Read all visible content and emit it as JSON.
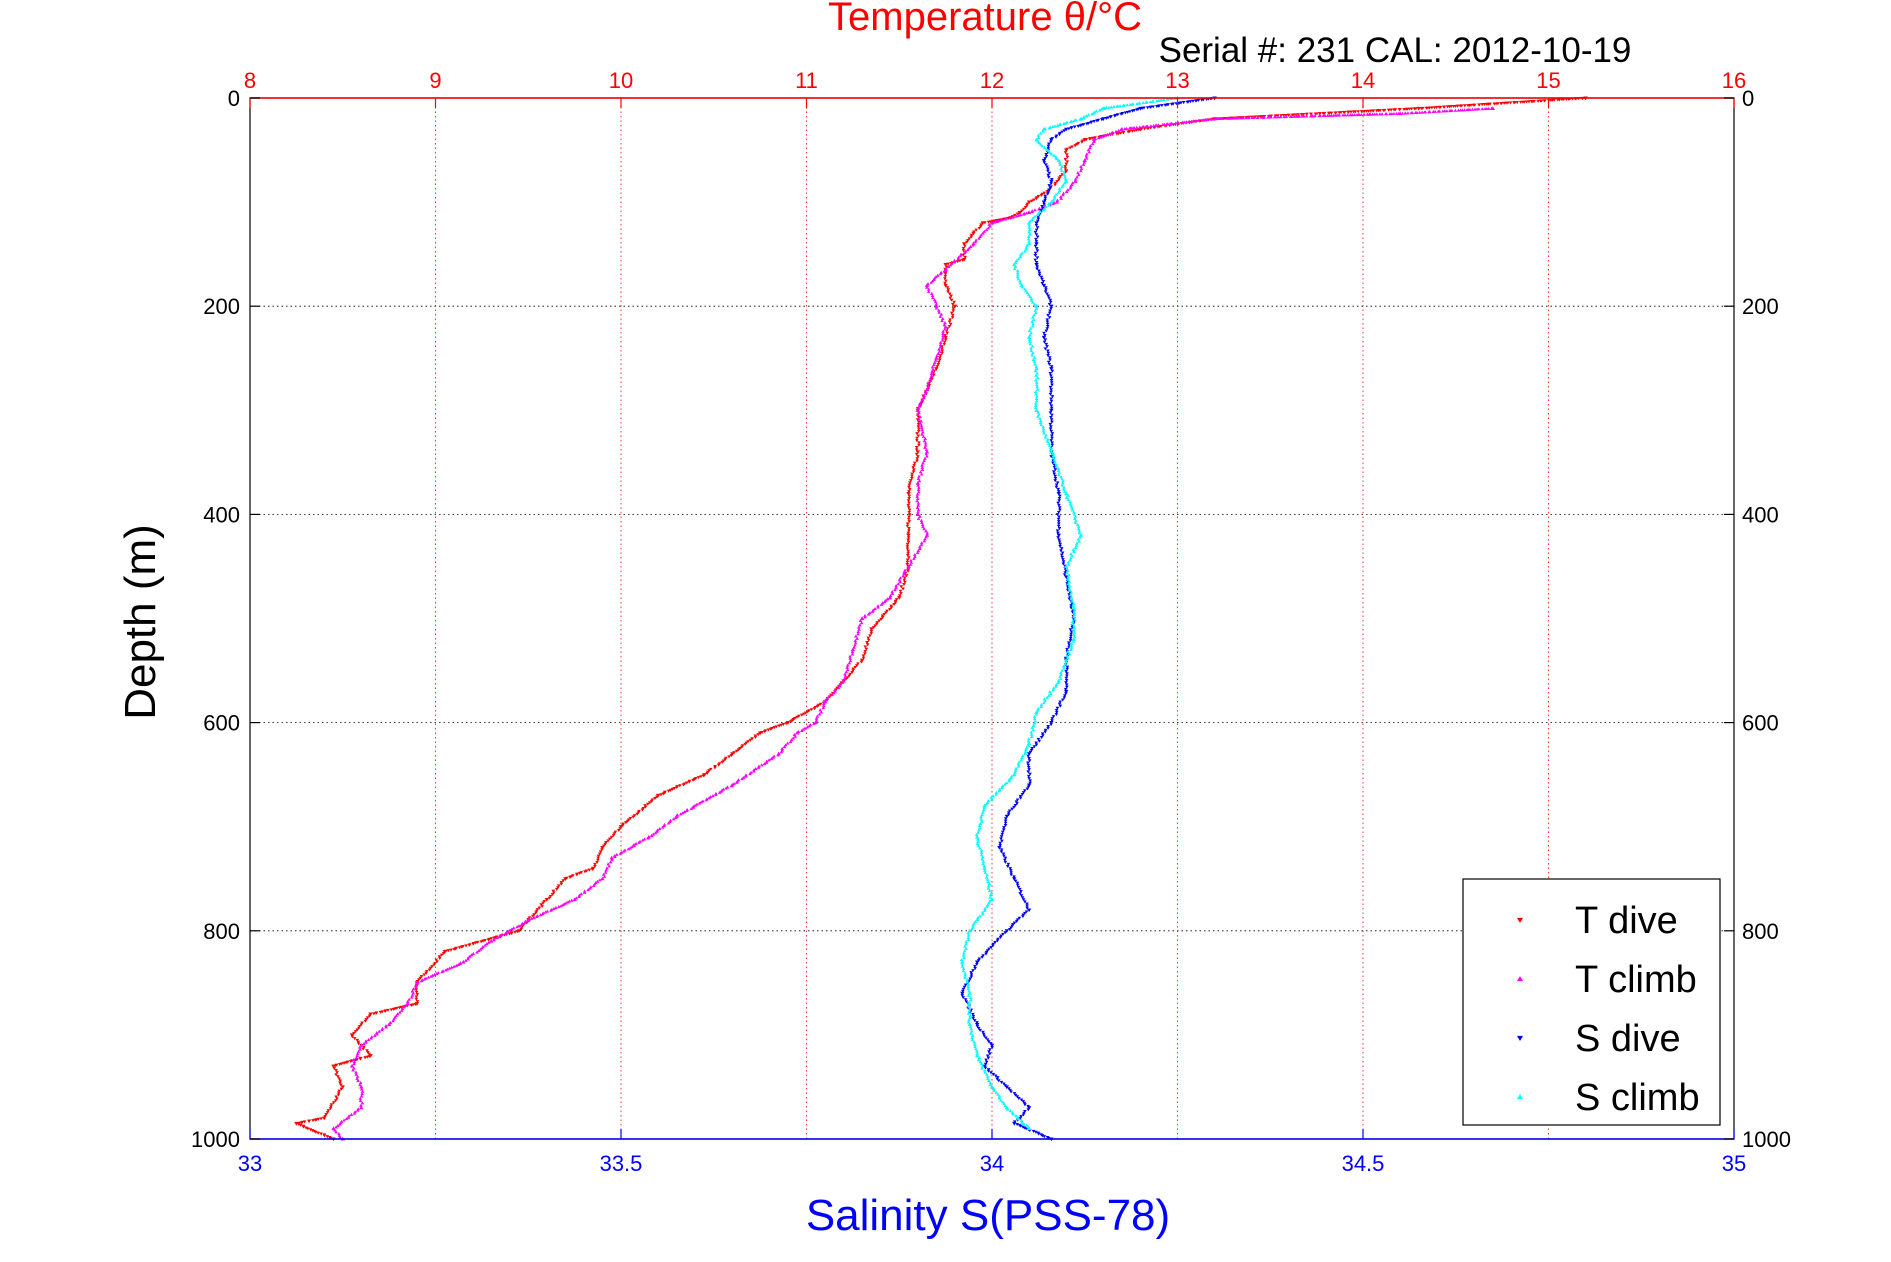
{
  "chart_data": {
    "type": "scatter",
    "title": "Temperature θ/°C",
    "subtitle": "Serial #: 231   CAL: 2012-10-19",
    "xlabel": "Salinity S(PSS-78)",
    "ylabel": "Depth (m)",
    "x_top": {
      "label": "Temperature θ/°C",
      "range": [
        8,
        16
      ],
      "ticks": [
        "8",
        "9",
        "10",
        "11",
        "12",
        "13",
        "14",
        "15",
        "16"
      ],
      "color": "#ff0000"
    },
    "x_bottom": {
      "label": "Salinity S(PSS-78)",
      "range": [
        33,
        35
      ],
      "ticks": [
        "33",
        "33.5",
        "34",
        "34.5",
        "35"
      ],
      "color": "#0000ff"
    },
    "y": {
      "range": [
        0,
        1000
      ],
      "reversed": true,
      "ticks": [
        "0",
        "200",
        "400",
        "600",
        "800",
        "1000"
      ]
    },
    "grid": true,
    "legend_position": "bottom-right",
    "series": [
      {
        "name": "T dive",
        "axis": "temperature",
        "color": "#ff0000",
        "marker": "down-triangle",
        "points": [
          [
            15.2,
            0
          ],
          [
            14.3,
            10
          ],
          [
            13.2,
            20
          ],
          [
            12.8,
            30
          ],
          [
            12.5,
            40
          ],
          [
            12.4,
            50
          ],
          [
            12.4,
            70
          ],
          [
            12.3,
            90
          ],
          [
            12.2,
            100
          ],
          [
            12.15,
            110
          ],
          [
            12.1,
            115
          ],
          [
            11.95,
            120
          ],
          [
            11.9,
            130
          ],
          [
            11.85,
            140
          ],
          [
            11.85,
            155
          ],
          [
            11.75,
            160
          ],
          [
            11.75,
            180
          ],
          [
            11.8,
            200
          ],
          [
            11.75,
            230
          ],
          [
            11.7,
            260
          ],
          [
            11.6,
            300
          ],
          [
            11.6,
            340
          ],
          [
            11.55,
            380
          ],
          [
            11.55,
            420
          ],
          [
            11.55,
            450
          ],
          [
            11.5,
            480
          ],
          [
            11.35,
            510
          ],
          [
            11.3,
            540
          ],
          [
            11.2,
            560
          ],
          [
            11.1,
            580
          ],
          [
            10.9,
            600
          ],
          [
            10.75,
            610
          ],
          [
            10.6,
            630
          ],
          [
            10.45,
            650
          ],
          [
            10.2,
            670
          ],
          [
            10.0,
            700
          ],
          [
            9.9,
            720
          ],
          [
            9.85,
            740
          ],
          [
            9.7,
            750
          ],
          [
            9.6,
            770
          ],
          [
            9.45,
            800
          ],
          [
            9.05,
            820
          ],
          [
            8.9,
            850
          ],
          [
            8.9,
            870
          ],
          [
            8.65,
            880
          ],
          [
            8.55,
            900
          ],
          [
            8.65,
            920
          ],
          [
            8.45,
            930
          ],
          [
            8.5,
            950
          ],
          [
            8.4,
            980
          ],
          [
            8.25,
            985
          ],
          [
            8.45,
            1000
          ]
        ]
      },
      {
        "name": "T climb",
        "axis": "temperature",
        "color": "#ff00ff",
        "marker": "up-triangle",
        "points": [
          [
            14.7,
            10
          ],
          [
            14.2,
            15
          ],
          [
            13.2,
            20
          ],
          [
            12.7,
            30
          ],
          [
            12.55,
            40
          ],
          [
            12.5,
            60
          ],
          [
            12.45,
            80
          ],
          [
            12.35,
            100
          ],
          [
            12.2,
            110
          ],
          [
            12.0,
            120
          ],
          [
            11.9,
            140
          ],
          [
            11.75,
            165
          ],
          [
            11.65,
            180
          ],
          [
            11.7,
            200
          ],
          [
            11.75,
            220
          ],
          [
            11.7,
            250
          ],
          [
            11.65,
            280
          ],
          [
            11.6,
            300
          ],
          [
            11.65,
            340
          ],
          [
            11.6,
            370
          ],
          [
            11.6,
            400
          ],
          [
            11.65,
            420
          ],
          [
            11.55,
            450
          ],
          [
            11.45,
            480
          ],
          [
            11.3,
            500
          ],
          [
            11.25,
            530
          ],
          [
            11.2,
            560
          ],
          [
            11.1,
            580
          ],
          [
            11.05,
            600
          ],
          [
            10.95,
            610
          ],
          [
            10.85,
            630
          ],
          [
            10.6,
            660
          ],
          [
            10.3,
            690
          ],
          [
            10.15,
            710
          ],
          [
            9.95,
            730
          ],
          [
            9.9,
            750
          ],
          [
            9.75,
            770
          ],
          [
            9.5,
            790
          ],
          [
            9.3,
            810
          ],
          [
            9.15,
            830
          ],
          [
            8.9,
            850
          ],
          [
            8.85,
            870
          ],
          [
            8.75,
            890
          ],
          [
            8.6,
            910
          ],
          [
            8.55,
            930
          ],
          [
            8.6,
            950
          ],
          [
            8.6,
            970
          ],
          [
            8.45,
            990
          ],
          [
            8.5,
            1000
          ]
        ]
      },
      {
        "name": "S dive",
        "axis": "salinity",
        "color": "#0000ff",
        "marker": "down-triangle",
        "points": [
          [
            34.3,
            0
          ],
          [
            34.2,
            10
          ],
          [
            34.15,
            20
          ],
          [
            34.1,
            30
          ],
          [
            34.08,
            40
          ],
          [
            34.07,
            60
          ],
          [
            34.08,
            80
          ],
          [
            34.07,
            100
          ],
          [
            34.06,
            120
          ],
          [
            34.06,
            140
          ],
          [
            34.06,
            160
          ],
          [
            34.07,
            180
          ],
          [
            34.08,
            200
          ],
          [
            34.07,
            230
          ],
          [
            34.08,
            260
          ],
          [
            34.08,
            300
          ],
          [
            34.08,
            340
          ],
          [
            34.09,
            380
          ],
          [
            34.09,
            420
          ],
          [
            34.1,
            460
          ],
          [
            34.11,
            500
          ],
          [
            34.1,
            540
          ],
          [
            34.1,
            570
          ],
          [
            34.08,
            600
          ],
          [
            34.05,
            630
          ],
          [
            34.05,
            660
          ],
          [
            34.02,
            690
          ],
          [
            34.01,
            720
          ],
          [
            34.03,
            750
          ],
          [
            34.05,
            780
          ],
          [
            34.02,
            800
          ],
          [
            33.98,
            830
          ],
          [
            33.96,
            860
          ],
          [
            33.98,
            890
          ],
          [
            34.0,
            910
          ],
          [
            33.99,
            930
          ],
          [
            34.02,
            950
          ],
          [
            34.05,
            970
          ],
          [
            34.03,
            985
          ],
          [
            34.08,
            1000
          ]
        ]
      },
      {
        "name": "S climb",
        "axis": "salinity",
        "color": "#00ffff",
        "marker": "up-triangle",
        "points": [
          [
            34.25,
            0
          ],
          [
            34.15,
            10
          ],
          [
            34.12,
            20
          ],
          [
            34.07,
            30
          ],
          [
            34.06,
            40
          ],
          [
            34.09,
            60
          ],
          [
            34.1,
            80
          ],
          [
            34.08,
            100
          ],
          [
            34.05,
            120
          ],
          [
            34.05,
            140
          ],
          [
            34.03,
            160
          ],
          [
            34.04,
            180
          ],
          [
            34.06,
            200
          ],
          [
            34.05,
            230
          ],
          [
            34.06,
            260
          ],
          [
            34.06,
            300
          ],
          [
            34.08,
            340
          ],
          [
            34.1,
            380
          ],
          [
            34.12,
            420
          ],
          [
            34.1,
            450
          ],
          [
            34.11,
            490
          ],
          [
            34.11,
            520
          ],
          [
            34.09,
            560
          ],
          [
            34.06,
            590
          ],
          [
            34.05,
            620
          ],
          [
            34.03,
            650
          ],
          [
            33.99,
            680
          ],
          [
            33.98,
            710
          ],
          [
            33.99,
            740
          ],
          [
            34.0,
            770
          ],
          [
            33.97,
            800
          ],
          [
            33.96,
            830
          ],
          [
            33.97,
            860
          ],
          [
            33.97,
            890
          ],
          [
            33.98,
            920
          ],
          [
            34.0,
            950
          ],
          [
            34.02,
            970
          ],
          [
            34.05,
            990
          ]
        ]
      }
    ]
  }
}
